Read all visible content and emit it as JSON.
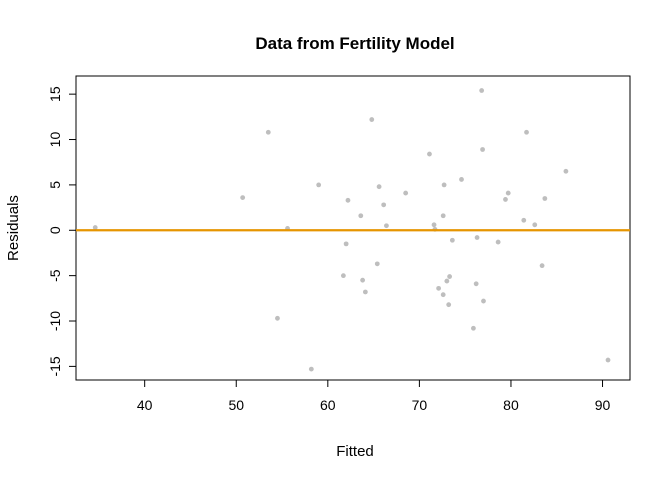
{
  "chart_data": {
    "type": "scatter",
    "title": "Data from Fertility Model",
    "xlabel": "Fitted",
    "ylabel": "Residuals",
    "xlim": [
      32.5,
      93.0
    ],
    "ylim": [
      -16.5,
      17.0
    ],
    "xticks": [
      40,
      50,
      60,
      70,
      80,
      90
    ],
    "yticks": [
      -15,
      -10,
      -5,
      0,
      5,
      10,
      15
    ],
    "grid": false,
    "point_color": "#bebebe",
    "reference_line": {
      "y": 0,
      "color": "#e69500"
    },
    "points": [
      {
        "x": 34.6,
        "y": 0.3
      },
      {
        "x": 50.7,
        "y": 3.6
      },
      {
        "x": 53.5,
        "y": 10.8
      },
      {
        "x": 54.5,
        "y": -9.7
      },
      {
        "x": 55.6,
        "y": 0.2
      },
      {
        "x": 58.2,
        "y": -15.3
      },
      {
        "x": 59.0,
        "y": 5.0
      },
      {
        "x": 61.7,
        "y": -5.0
      },
      {
        "x": 62.0,
        "y": -1.5
      },
      {
        "x": 62.2,
        "y": 3.3
      },
      {
        "x": 63.6,
        "y": 1.6
      },
      {
        "x": 63.8,
        "y": -5.5
      },
      {
        "x": 64.1,
        "y": -6.8
      },
      {
        "x": 64.8,
        "y": 12.2
      },
      {
        "x": 65.4,
        "y": -3.7
      },
      {
        "x": 65.6,
        "y": 4.8
      },
      {
        "x": 66.1,
        "y": 2.8
      },
      {
        "x": 66.4,
        "y": 0.5
      },
      {
        "x": 68.5,
        "y": 4.1
      },
      {
        "x": 71.1,
        "y": 8.4
      },
      {
        "x": 71.6,
        "y": 0.6
      },
      {
        "x": 71.7,
        "y": 0.1
      },
      {
        "x": 72.1,
        "y": -6.4
      },
      {
        "x": 72.6,
        "y": 1.6
      },
      {
        "x": 72.6,
        "y": -7.1
      },
      {
        "x": 72.7,
        "y": 5.0
      },
      {
        "x": 73.0,
        "y": -5.6
      },
      {
        "x": 73.2,
        "y": -8.2
      },
      {
        "x": 73.3,
        "y": -5.1
      },
      {
        "x": 73.6,
        "y": -1.1
      },
      {
        "x": 74.6,
        "y": 5.6
      },
      {
        "x": 75.9,
        "y": -10.8
      },
      {
        "x": 76.2,
        "y": -5.9
      },
      {
        "x": 76.3,
        "y": -0.8
      },
      {
        "x": 76.8,
        "y": 15.4
      },
      {
        "x": 76.9,
        "y": 8.9
      },
      {
        "x": 77.0,
        "y": -7.8
      },
      {
        "x": 78.6,
        "y": -1.3
      },
      {
        "x": 79.4,
        "y": 3.4
      },
      {
        "x": 79.7,
        "y": 4.1
      },
      {
        "x": 81.4,
        "y": 1.1
      },
      {
        "x": 81.7,
        "y": 10.8
      },
      {
        "x": 82.6,
        "y": 0.6
      },
      {
        "x": 83.4,
        "y": -3.9
      },
      {
        "x": 83.7,
        "y": 3.5
      },
      {
        "x": 86.0,
        "y": 6.5
      },
      {
        "x": 90.6,
        "y": -14.3
      }
    ]
  }
}
